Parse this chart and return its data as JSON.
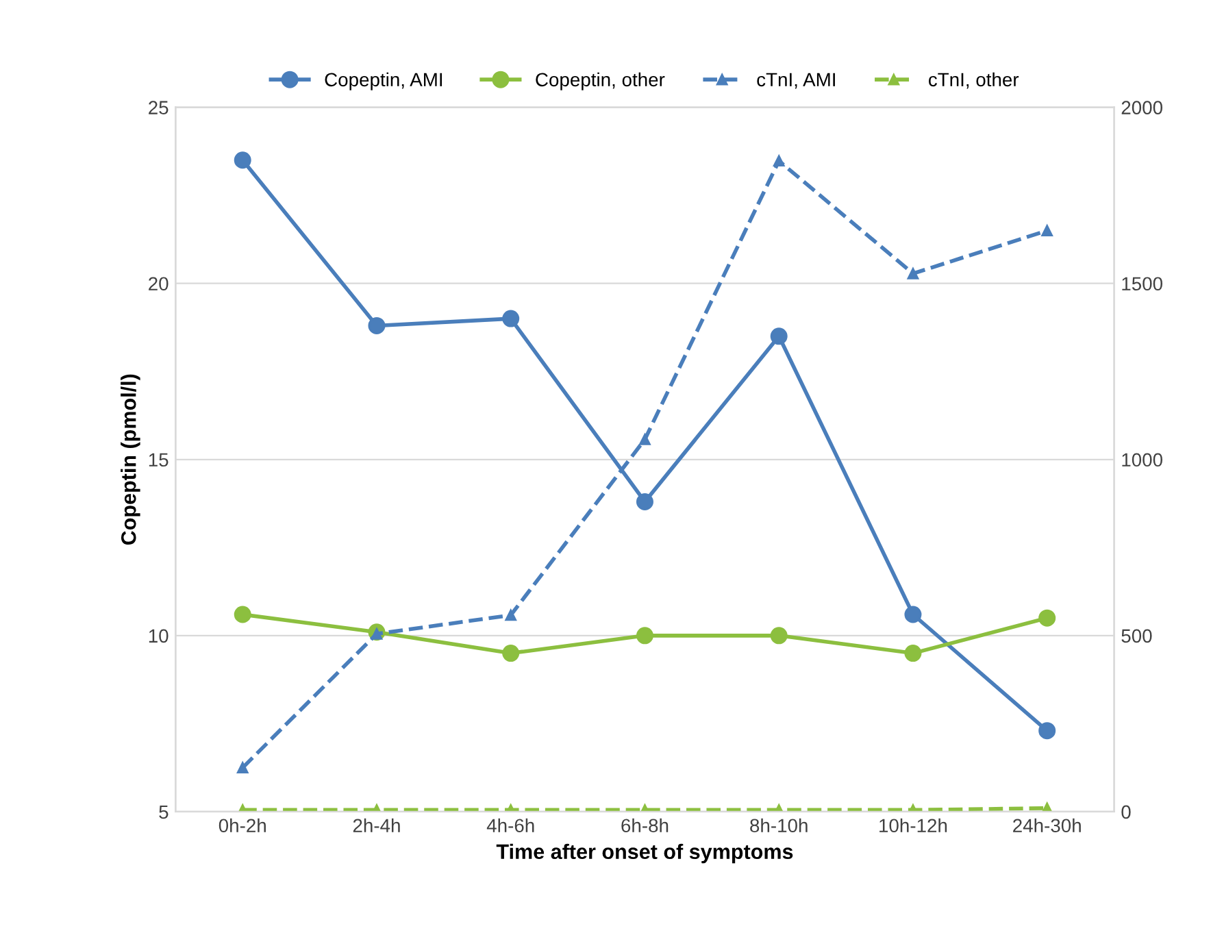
{
  "chart_data": {
    "type": "line",
    "xlabel": "Time after onset of symptoms",
    "ylabel": "Copeptin (pmol/l)",
    "categories": [
      "0h-2h",
      "2h-4h",
      "4h-6h",
      "6h-8h",
      "8h-10h",
      "10h-12h",
      "24h-30h"
    ],
    "series": [
      {
        "name": "Copeptin, AMI",
        "color": "#4a7ebb",
        "marker": "circle",
        "line_style": "solid",
        "values": [
          23.5,
          18.8,
          19.0,
          13.8,
          18.5,
          10.6,
          7.3
        ]
      },
      {
        "name": "Copeptin, other",
        "color": "#8cbf3f",
        "marker": "circle",
        "line_style": "solid",
        "values": [
          10.6,
          10.1,
          9.5,
          10.0,
          10.0,
          9.5,
          10.5
        ]
      },
      {
        "name": "cTnI, AMI",
        "color": "#4a7ebb",
        "marker": "triangle",
        "line_style": "dashed",
        "axis": "y2",
        "values": [
          125,
          505,
          558,
          1057,
          1848,
          1528,
          1650
        ]
      },
      {
        "name": "cTnI, other",
        "color": "#8cbf3f",
        "marker": "triangle",
        "line_style": "dashed",
        "axis": "y2",
        "values": [
          5,
          5,
          5,
          5,
          5,
          5,
          10
        ]
      }
    ],
    "ylim": [
      5,
      25
    ],
    "yticks": [
      5,
      10,
      15,
      20,
      25
    ],
    "y2lim": [
      0,
      2000
    ],
    "y2ticks": [
      0,
      500,
      1000,
      1500,
      2000
    ],
    "grid": "y",
    "legend": "top"
  }
}
